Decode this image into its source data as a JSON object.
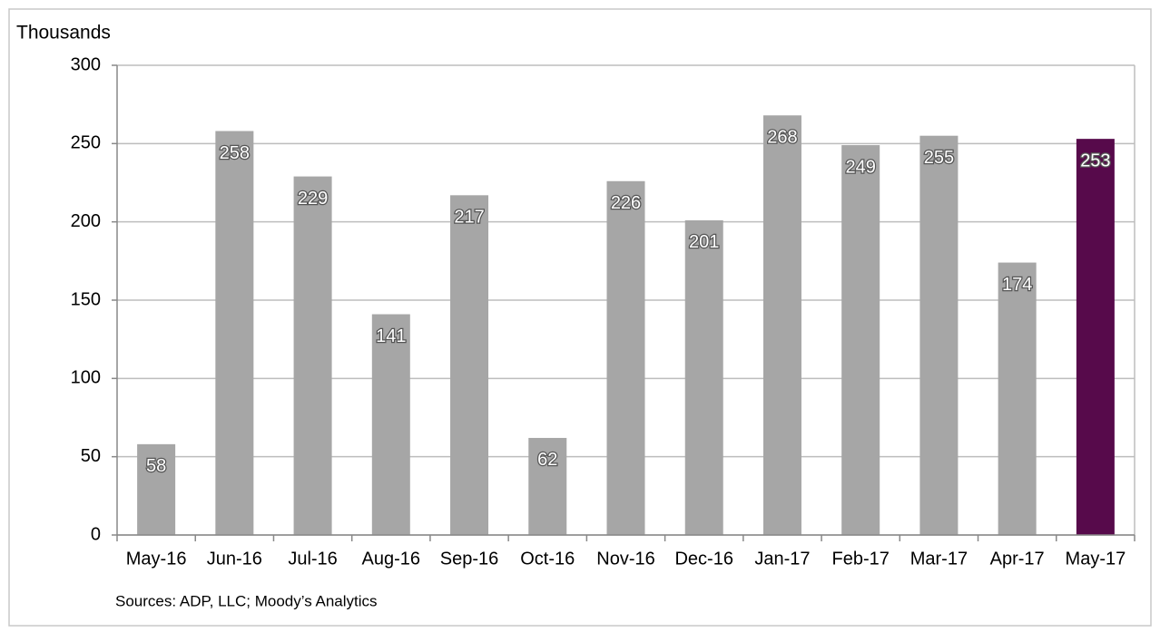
{
  "chart_data": {
    "type": "bar",
    "y_label": "Thousands",
    "note": "Sources: ADP, LLC; Moody’s Analytics",
    "categories": [
      "May-16",
      "Jun-16",
      "Jul-16",
      "Aug-16",
      "Sep-16",
      "Oct-16",
      "Nov-16",
      "Dec-16",
      "Jan-17",
      "Feb-17",
      "Mar-17",
      "Apr-17",
      "May-17"
    ],
    "values": [
      58,
      258,
      229,
      141,
      217,
      62,
      226,
      201,
      268,
      249,
      255,
      174,
      253
    ],
    "colors": [
      "#a6a6a6",
      "#a6a6a6",
      "#a6a6a6",
      "#a6a6a6",
      "#a6a6a6",
      "#a6a6a6",
      "#a6a6a6",
      "#a6a6a6",
      "#a6a6a6",
      "#a6a6a6",
      "#a6a6a6",
      "#a6a6a6",
      "#570a4b"
    ],
    "ylim": [
      0,
      300
    ],
    "yticks": [
      0,
      50,
      100,
      150,
      200,
      250,
      300
    ],
    "grid": true
  }
}
